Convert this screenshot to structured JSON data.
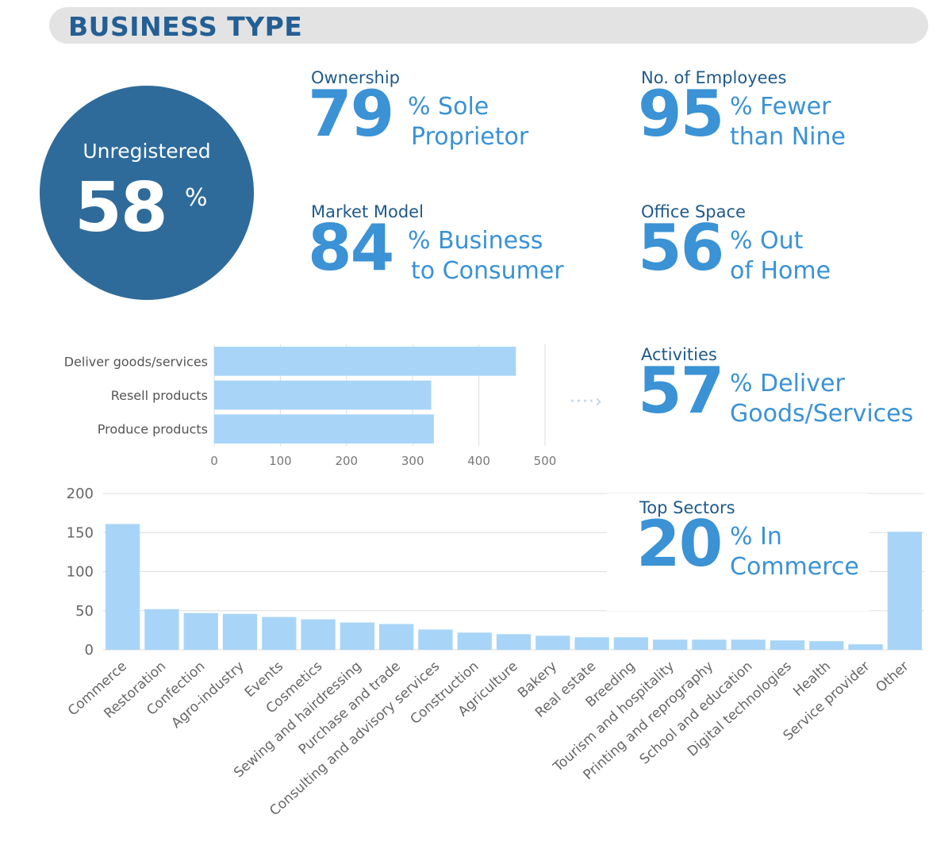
{
  "header": {
    "title": "BUSINESS TYPE"
  },
  "registration": {
    "label": "Unregistered",
    "value": "58",
    "unit": "%"
  },
  "ownership": {
    "label": "Ownership",
    "value": "79",
    "line1": "% Sole",
    "line2": "Proprietor"
  },
  "employees": {
    "label": "No. of Employees",
    "value": "95",
    "line1": "% Fewer",
    "line2": "than Nine"
  },
  "market_model": {
    "label": "Market Model",
    "value": "84",
    "line1": "% Business",
    "line2": "to Consumer"
  },
  "office_space": {
    "label": "Office Space",
    "value": "56",
    "line1": "% Out",
    "line2": "of Home"
  },
  "activities": {
    "label": "Activities",
    "value": "57",
    "line1": "% Deliver",
    "line2": "Goods/Services"
  },
  "top_sectors": {
    "label": "Top Sectors",
    "value": "20",
    "line1": "% In",
    "line2": "Commerce"
  },
  "arrow": {
    "glyph": "····›"
  },
  "colors": {
    "bar": "#a8d5f7",
    "accent": "#3b92d5",
    "navy": "#2e6b9b",
    "grid": "#dddddd"
  },
  "chart_data": [
    {
      "type": "bar",
      "orientation": "horizontal",
      "categories": [
        "Deliver goods/services",
        "Resell products",
        "Produce products"
      ],
      "values": [
        456,
        328,
        332
      ],
      "xlim": [
        0,
        500
      ],
      "ticks": [
        "0",
        "100",
        "200",
        "300",
        "400",
        "500"
      ],
      "grid": true
    },
    {
      "type": "bar",
      "orientation": "vertical",
      "categories": [
        "Commerce",
        "Restoration",
        "Confection",
        "Agro-industry",
        "Events",
        "Cosmetics",
        "Sewing and hairdressing",
        "Purchase and trade",
        "Consulting and advisory services",
        "Construction",
        "Agriculture",
        "Bakery",
        "Real estate",
        "Breeding",
        "Tourism and hospitality",
        "Printing and reprography",
        "School and education",
        "Digital technologies",
        "Health",
        "Service provider",
        "Other"
      ],
      "values": [
        161,
        52,
        47,
        46,
        42,
        39,
        35,
        33,
        26,
        22,
        20,
        18,
        16,
        16,
        13,
        13,
        13,
        12,
        11,
        7,
        151
      ],
      "ylim": [
        0,
        200
      ],
      "ticks": [
        "0",
        "50",
        "100",
        "150",
        "200"
      ],
      "grid": true
    }
  ]
}
